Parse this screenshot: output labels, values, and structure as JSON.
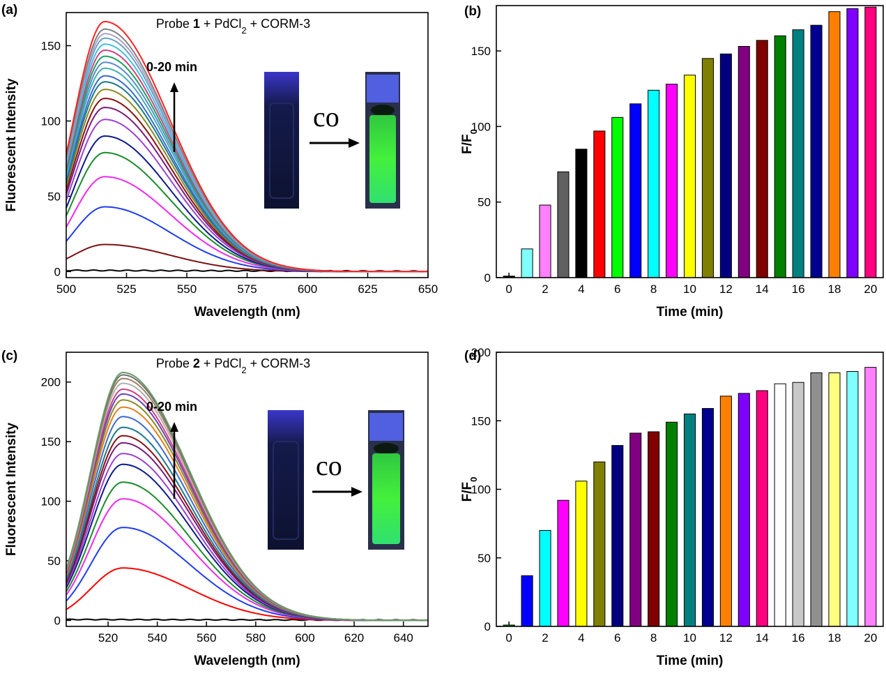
{
  "chart_data": [
    {
      "panel": "(a)",
      "type": "line",
      "title": "Probe 1 + PdCl2 + CORM-3",
      "title_parts": {
        "pre": "Probe ",
        "bold": "1",
        "mid": " + PdCl",
        "sub": "2",
        "post": " + CORM-3"
      },
      "annotation": "0-20 min",
      "inset_label": "CO",
      "xlabel": "Wavelength (nm)",
      "ylabel": "Fluorescent Intensity",
      "xlim": [
        500,
        650
      ],
      "ylim": [
        -4,
        172
      ],
      "xticks": [
        500,
        525,
        550,
        575,
        600,
        625,
        650
      ],
      "yticks": [
        0,
        50,
        100,
        150
      ],
      "peak_wavelength": 516,
      "series": [
        {
          "peak": 1,
          "color": "#000000"
        },
        {
          "peak": 18,
          "color": "#7b1010"
        },
        {
          "peak": 43,
          "color": "#1f3cf0"
        },
        {
          "peak": 63,
          "color": "#f028f0"
        },
        {
          "peak": 79,
          "color": "#1a8a2a"
        },
        {
          "peak": 90,
          "color": "#0a1a8a"
        },
        {
          "peak": 101,
          "color": "#9a40d0"
        },
        {
          "peak": 109,
          "color": "#7a1a7a"
        },
        {
          "peak": 115,
          "color": "#8a1010"
        },
        {
          "peak": 121,
          "color": "#8a8a20"
        },
        {
          "peak": 126,
          "color": "#1a7a8a"
        },
        {
          "peak": 130,
          "color": "#3a6ad0"
        },
        {
          "peak": 135,
          "color": "#40b0b0"
        },
        {
          "peak": 139,
          "color": "#5a8ad0"
        },
        {
          "peak": 143,
          "color": "#20a060"
        },
        {
          "peak": 147,
          "color": "#d04080"
        },
        {
          "peak": 151,
          "color": "#40c0e0"
        },
        {
          "peak": 155,
          "color": "#6aa0d0"
        },
        {
          "peak": 158,
          "color": "#b0a0c0"
        },
        {
          "peak": 161,
          "color": "#808080"
        },
        {
          "peak": 166,
          "color": "#ff2020"
        }
      ]
    },
    {
      "panel": "(b)",
      "type": "bar",
      "xlabel": "Time (min)",
      "ylabel": "F/F0",
      "ylabel_parts": {
        "main": "F/F",
        "sub": "0"
      },
      "xlim": [
        -0.7,
        20.7
      ],
      "ylim": [
        0,
        180
      ],
      "xticks": [
        0,
        2,
        4,
        6,
        8,
        10,
        12,
        14,
        16,
        18,
        20
      ],
      "yticks": [
        0,
        50,
        100,
        150
      ],
      "x": [
        0,
        1,
        2,
        3,
        4,
        5,
        6,
        7,
        8,
        9,
        10,
        11,
        12,
        13,
        14,
        15,
        16,
        17,
        18,
        19,
        20
      ],
      "values": [
        1,
        19,
        48,
        70,
        85,
        97,
        106,
        115,
        124,
        128,
        134,
        145,
        148,
        153,
        157,
        160,
        164,
        167,
        176,
        178,
        179
      ],
      "colors": [
        "#000000",
        "#80ffff",
        "#ff80ff",
        "#606060",
        "#000000",
        "#ff0000",
        "#00ff00",
        "#0000ff",
        "#00ffff",
        "#ff00ff",
        "#ffff00",
        "#808000",
        "#000080",
        "#800080",
        "#800000",
        "#008000",
        "#008080",
        "#000090",
        "#ff8000",
        "#8000ff",
        "#ff0080"
      ]
    },
    {
      "panel": "(c)",
      "type": "line",
      "title": "Probe 2 + PdCl2 + CORM-3",
      "title_parts": {
        "pre": "Probe ",
        "bold": "2",
        "mid": " + PdCl",
        "sub": "2",
        "post": " + CORM-3"
      },
      "annotation": "0-20 min",
      "inset_label": "CO",
      "xlabel": "Wavelength (nm)",
      "ylabel": "Fluorescent Intensity",
      "xlim": [
        503,
        650
      ],
      "ylim": [
        -5,
        225
      ],
      "xticks": [
        520,
        540,
        560,
        580,
        600,
        620,
        640
      ],
      "yticks": [
        0,
        50,
        100,
        150,
        200
      ],
      "peak_wavelength": 526,
      "series": [
        {
          "peak": 1,
          "color": "#000000"
        },
        {
          "peak": 44,
          "color": "#ff0000"
        },
        {
          "peak": 78,
          "color": "#1f3cf0"
        },
        {
          "peak": 102,
          "color": "#f028f0"
        },
        {
          "peak": 116,
          "color": "#1a8a2a"
        },
        {
          "peak": 131,
          "color": "#0a1a8a"
        },
        {
          "peak": 140,
          "color": "#9a40d0"
        },
        {
          "peak": 149,
          "color": "#7a1a7a"
        },
        {
          "peak": 155,
          "color": "#8a1010"
        },
        {
          "peak": 162,
          "color": "#1a7a8a"
        },
        {
          "peak": 171,
          "color": "#3a6ad0"
        },
        {
          "peak": 179,
          "color": "#e08020"
        },
        {
          "peak": 185,
          "color": "#8a8a20"
        },
        {
          "peak": 190,
          "color": "#6a40c0"
        },
        {
          "peak": 194,
          "color": "#d04080"
        },
        {
          "peak": 199,
          "color": "#b0b0b0"
        },
        {
          "peak": 203,
          "color": "#a08060"
        },
        {
          "peak": 206,
          "color": "#707070"
        },
        {
          "peak": 208,
          "color": "#6a9a6a"
        }
      ]
    },
    {
      "panel": "(d)",
      "type": "bar",
      "xlabel": "Time (min)",
      "ylabel": "F/F0",
      "ylabel_parts": {
        "main": "F/F",
        "sub": "0"
      },
      "xlim": [
        -0.7,
        20.7
      ],
      "ylim": [
        0,
        200
      ],
      "xticks": [
        0,
        2,
        4,
        6,
        8,
        10,
        12,
        14,
        16,
        18,
        20
      ],
      "yticks": [
        0,
        50,
        100,
        150,
        200
      ],
      "x": [
        0,
        1,
        2,
        3,
        4,
        5,
        6,
        7,
        8,
        9,
        10,
        11,
        12,
        13,
        14,
        15,
        16,
        17,
        18,
        19,
        20
      ],
      "values": [
        1,
        37,
        70,
        92,
        106,
        120,
        132,
        141,
        142,
        149,
        155,
        159,
        168,
        170,
        172,
        177,
        178,
        185,
        185,
        186,
        189
      ],
      "colors": [
        "#00a000",
        "#0000ff",
        "#00ffff",
        "#ff00ff",
        "#ffff00",
        "#808000",
        "#000080",
        "#800080",
        "#800000",
        "#008000",
        "#008080",
        "#000090",
        "#ff8000",
        "#8000ff",
        "#ff0080",
        "#ffffff",
        "#c8c8c8",
        "#909090",
        "#ffff80",
        "#80ffff",
        "#ff80ff"
      ]
    }
  ]
}
